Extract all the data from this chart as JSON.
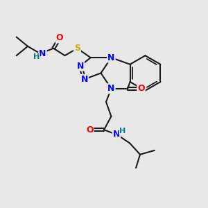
{
  "bg_color": "#e8e8e8",
  "bond_color": "#1a1a1a",
  "bond_width": 1.5,
  "N_color": "#0000ff",
  "O_color": "#ff0000",
  "S_color": "#b8b800",
  "H_color": "#008080",
  "font_size": 9,
  "figsize": [
    3.0,
    3.0
  ],
  "dpi": 100,
  "xlim": [
    0,
    10
  ],
  "ylim": [
    0,
    10
  ]
}
